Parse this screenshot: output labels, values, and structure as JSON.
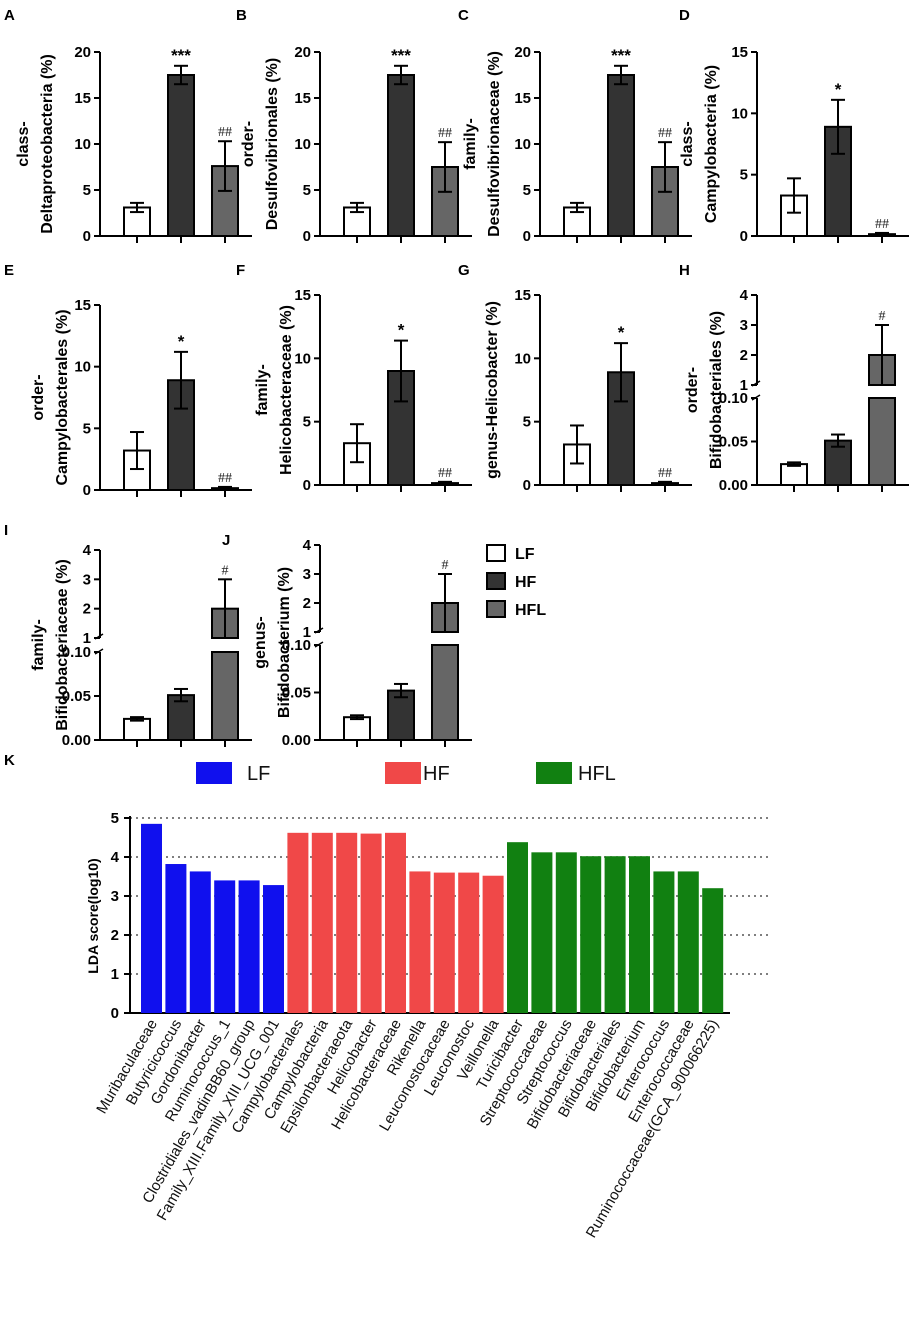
{
  "colors": {
    "LF": "#ffffff",
    "HF": "#333333",
    "HFL": "#666666",
    "K_LF": "#1010ee",
    "K_HF": "#f04848",
    "K_HFL": "#118011"
  },
  "legend": [
    {
      "key": "LF",
      "label": "LF"
    },
    {
      "key": "HF",
      "label": "HF"
    },
    {
      "key": "HFL",
      "label": "HFL"
    }
  ],
  "chart_data": [
    {
      "letter": "A",
      "type": "bar",
      "ylabel": [
        "class-",
        "Deltaproteobacteria (%)"
      ],
      "categories": [
        "LF",
        "HF",
        "HFL"
      ],
      "values": [
        3.1,
        17.5,
        7.6
      ],
      "errors": [
        0.5,
        1.0,
        2.7
      ],
      "annotations": [
        "",
        "***",
        "##"
      ],
      "yticks": [
        "0",
        "5",
        "10",
        "15",
        "20"
      ],
      "ylim": [
        0,
        20
      ]
    },
    {
      "letter": "B",
      "type": "bar",
      "ylabel": [
        "order-",
        "Desulfovibrionales (%)"
      ],
      "categories": [
        "LF",
        "HF",
        "HFL"
      ],
      "values": [
        3.1,
        17.5,
        7.5
      ],
      "errors": [
        0.5,
        1.0,
        2.7
      ],
      "annotations": [
        "",
        "***",
        "##"
      ],
      "yticks": [
        "0",
        "5",
        "10",
        "15",
        "20"
      ],
      "ylim": [
        0,
        20
      ]
    },
    {
      "letter": "C",
      "type": "bar",
      "ylabel": [
        "family-",
        "Desulfovibrionaceae (%)"
      ],
      "categories": [
        "LF",
        "HF",
        "HFL"
      ],
      "values": [
        3.1,
        17.5,
        7.5
      ],
      "errors": [
        0.5,
        1.0,
        2.7
      ],
      "annotations": [
        "",
        "***",
        "##"
      ],
      "yticks": [
        "0",
        "5",
        "10",
        "15",
        "20"
      ],
      "ylim": [
        0,
        20
      ]
    },
    {
      "letter": "D",
      "type": "bar",
      "ylabel": [
        "class-",
        "Campylobacteria (%)"
      ],
      "categories": [
        "LF",
        "HF",
        "HFL"
      ],
      "values": [
        3.3,
        8.9,
        0.15
      ],
      "errors": [
        1.4,
        2.2,
        0.1
      ],
      "annotations": [
        "",
        "*",
        "##"
      ],
      "yticks": [
        "0",
        "5",
        "10",
        "15"
      ],
      "ylim": [
        0,
        15
      ]
    },
    {
      "letter": "E",
      "type": "bar",
      "ylabel": [
        "order-",
        "Campylobacterales (%)"
      ],
      "categories": [
        "LF",
        "HF",
        "HFL"
      ],
      "values": [
        3.2,
        8.9,
        0.15
      ],
      "errors": [
        1.5,
        2.3,
        0.1
      ],
      "annotations": [
        "",
        "*",
        "##"
      ],
      "yticks": [
        "0",
        "5",
        "10",
        "15"
      ],
      "ylim": [
        0,
        15
      ]
    },
    {
      "letter": "F",
      "type": "bar",
      "ylabel": [
        "family-",
        "Helicobacteraceae (%)"
      ],
      "categories": [
        "LF",
        "HF",
        "HFL"
      ],
      "values": [
        3.3,
        9.0,
        0.15
      ],
      "errors": [
        1.5,
        2.4,
        0.1
      ],
      "annotations": [
        "",
        "*",
        "##"
      ],
      "yticks": [
        "0",
        "5",
        "10",
        "15"
      ],
      "ylim": [
        0,
        15
      ]
    },
    {
      "letter": "G",
      "type": "bar",
      "ylabel": [
        "genus-Helicobacter (%)"
      ],
      "categories": [
        "LF",
        "HF",
        "HFL"
      ],
      "values": [
        3.2,
        8.9,
        0.15
      ],
      "errors": [
        1.5,
        2.3,
        0.1
      ],
      "annotations": [
        "",
        "*",
        "##"
      ],
      "yticks": [
        "0",
        "5",
        "10",
        "15"
      ],
      "ylim": [
        0,
        15
      ]
    },
    {
      "letter": "H",
      "type": "bar",
      "broken_axis": true,
      "ylabel": [
        "order-",
        "Bifidobacteriales (%)"
      ],
      "categories": [
        "LF",
        "HF",
        "HFL"
      ],
      "values": [
        0.024,
        0.051,
        2.0
      ],
      "errors": [
        0.002,
        0.007,
        1.0
      ],
      "annotations": [
        "",
        "",
        "#"
      ],
      "lower_range": [
        0,
        0.1
      ],
      "upper_range": [
        1,
        4
      ],
      "yticks_lower": [
        "0.00",
        "0.05",
        "0.10"
      ],
      "yticks_upper": [
        "1",
        "2",
        "3",
        "4"
      ]
    },
    {
      "letter": "I",
      "type": "bar",
      "broken_axis": true,
      "ylabel": [
        "family-",
        "Bifidobacteriaceae (%)"
      ],
      "categories": [
        "LF",
        "HF",
        "HFL"
      ],
      "values": [
        0.024,
        0.051,
        2.0
      ],
      "errors": [
        0.002,
        0.007,
        1.0
      ],
      "annotations": [
        "",
        "",
        "#"
      ],
      "lower_range": [
        0,
        0.1
      ],
      "upper_range": [
        1,
        4
      ],
      "yticks_lower": [
        "0.00",
        "0.05",
        "0.10"
      ],
      "yticks_upper": [
        "1",
        "2",
        "3",
        "4"
      ]
    },
    {
      "letter": "J",
      "type": "bar",
      "broken_axis": true,
      "ylabel": [
        "genus-",
        "Bifidobacterium (%)"
      ],
      "categories": [
        "LF",
        "HF",
        "HFL"
      ],
      "values": [
        0.024,
        0.052,
        2.0
      ],
      "errors": [
        0.002,
        0.007,
        1.0
      ],
      "annotations": [
        "",
        "",
        "#"
      ],
      "lower_range": [
        0,
        0.1
      ],
      "upper_range": [
        1,
        4
      ],
      "yticks_lower": [
        "0.00",
        "0.05",
        "0.10"
      ],
      "yticks_upper": [
        "1",
        "2",
        "3",
        "4"
      ]
    },
    {
      "letter": "K",
      "type": "bar",
      "ylabel": "LDA score(log10)",
      "ylim": [
        0,
        5
      ],
      "yticks": [
        "0",
        "1",
        "2",
        "3",
        "4",
        "5"
      ],
      "legend": [
        {
          "group": "LF",
          "label": "LF"
        },
        {
          "group": "HF",
          "label": "HF"
        },
        {
          "group": "HFL",
          "label": "HFL"
        }
      ],
      "categories": [
        "Muribaculaceae",
        "Butyricicoccus",
        "Gordonibacter",
        "Ruminococcus_1",
        "Clostridiales_vadinBB60_group",
        "Family_XIII.Family_XIII_UCG_001",
        "Campylobacterales",
        "Campylobacteria",
        "Epsilonbacteraeota",
        "Helicobacter",
        "Helicobacteraceae",
        "Rikenella",
        "Leuconostocaceae",
        "Leuconostoc",
        "Veillonella",
        "Turicibacter",
        "Streptococcaceae",
        "Streptococcus",
        "Bifidobacteriaceae",
        "Bifidobacteriales",
        "Bifidobacterium",
        "Enterococcus",
        "Enterococcaceae",
        "Ruminococcaceae(GCA_900066225)"
      ],
      "groups": [
        "LF",
        "LF",
        "LF",
        "LF",
        "LF",
        "LF",
        "HF",
        "HF",
        "HF",
        "HF",
        "HF",
        "HF",
        "HF",
        "HF",
        "HF",
        "HFL",
        "HFL",
        "HFL",
        "HFL",
        "HFL",
        "HFL",
        "HFL",
        "HFL",
        "HFL"
      ],
      "values": [
        4.85,
        3.82,
        3.63,
        3.4,
        3.4,
        3.28,
        4.62,
        4.62,
        4.62,
        4.6,
        4.62,
        3.63,
        3.6,
        3.6,
        3.52,
        4.38,
        4.12,
        4.12,
        4.02,
        4.02,
        4.02,
        3.63,
        3.63,
        3.2
      ]
    }
  ]
}
